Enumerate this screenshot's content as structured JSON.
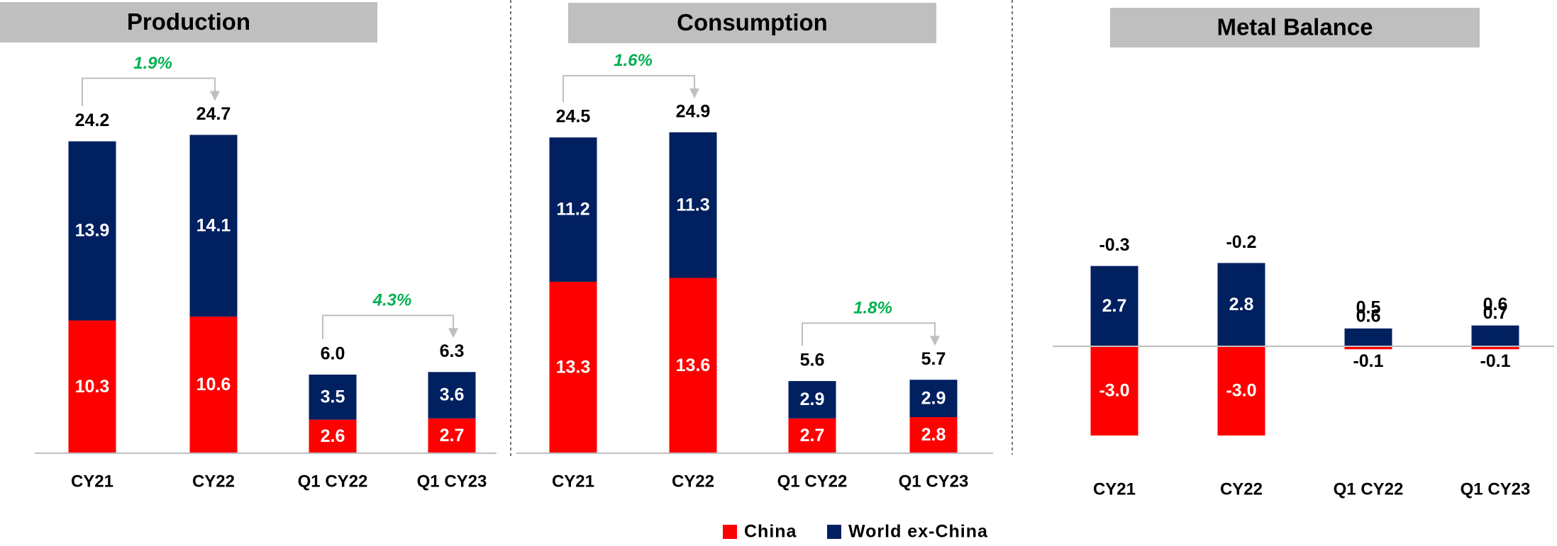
{
  "chart_data": [
    {
      "type": "bar",
      "title": "Production",
      "categories": [
        "CY21",
        "CY22",
        "Q1 CY22",
        "Q1 CY23"
      ],
      "series": [
        {
          "values": [
            10.3,
            10.6,
            2.6,
            2.7
          ],
          "value_labels": [
            "10.3",
            "10.6",
            "2.6",
            "2.7"
          ]
        },
        {
          "values": [
            13.9,
            14.1,
            3.5,
            3.6
          ],
          "value_labels": [
            "13.9",
            "14.1",
            "3.5",
            "3.6"
          ]
        }
      ],
      "totals": [
        24.2,
        24.7,
        6,
        6.3
      ],
      "total_labels": [
        "24.2",
        "24.7",
        "6.0",
        "6.3"
      ],
      "annotations": [
        "1.9%",
        "4.3%"
      ],
      "ylim": [
        0,
        30
      ]
    },
    {
      "type": "bar",
      "title": "Consumption",
      "categories": [
        "CY21",
        "CY22",
        "Q1 CY22",
        "Q1 CY23"
      ],
      "series": [
        {
          "values": [
            13.3,
            13.6,
            2.7,
            2.8
          ],
          "value_labels": [
            "13.3",
            "13.6",
            "2.7",
            "2.8"
          ]
        },
        {
          "values": [
            11.2,
            11.3,
            2.9,
            2.9
          ],
          "value_labels": [
            "11.2",
            "11.3",
            "2.9",
            "2.9"
          ]
        }
      ],
      "totals": [
        24.5,
        24.9,
        5.6,
        5.7
      ],
      "total_labels": [
        "24.5",
        "24.9",
        "5.6",
        "5.7"
      ],
      "annotations": [
        "1.6%",
        "1.8%"
      ],
      "ylim": [
        0,
        30
      ]
    },
    {
      "type": "bar",
      "title": "Metal Balance",
      "categories": [
        "CY21",
        "CY22",
        "Q1 CY22",
        "Q1 CY23"
      ],
      "series": [
        {
          "values": [
            -3,
            -3,
            -0.1,
            -0.1
          ],
          "value_labels": [
            "-3.0",
            "-3.0",
            "-0.1",
            "-0.1"
          ]
        },
        {
          "values": [
            2.7,
            2.8,
            0.6,
            0.7
          ],
          "value_labels": [
            "2.7",
            "2.8",
            "0.6",
            "0.7"
          ]
        }
      ],
      "totals": [
        -0.3,
        -0.2,
        0.5,
        0.6
      ],
      "total_labels": [
        "-0.3",
        "-0.2",
        "0.5",
        "0.6"
      ],
      "annotations": [],
      "ylim": [
        -4,
        4
      ]
    }
  ],
  "legend": [
    {
      "name": "China",
      "color": "#ff0000"
    },
    {
      "name": "World ex-China",
      "color": "#002060"
    }
  ]
}
